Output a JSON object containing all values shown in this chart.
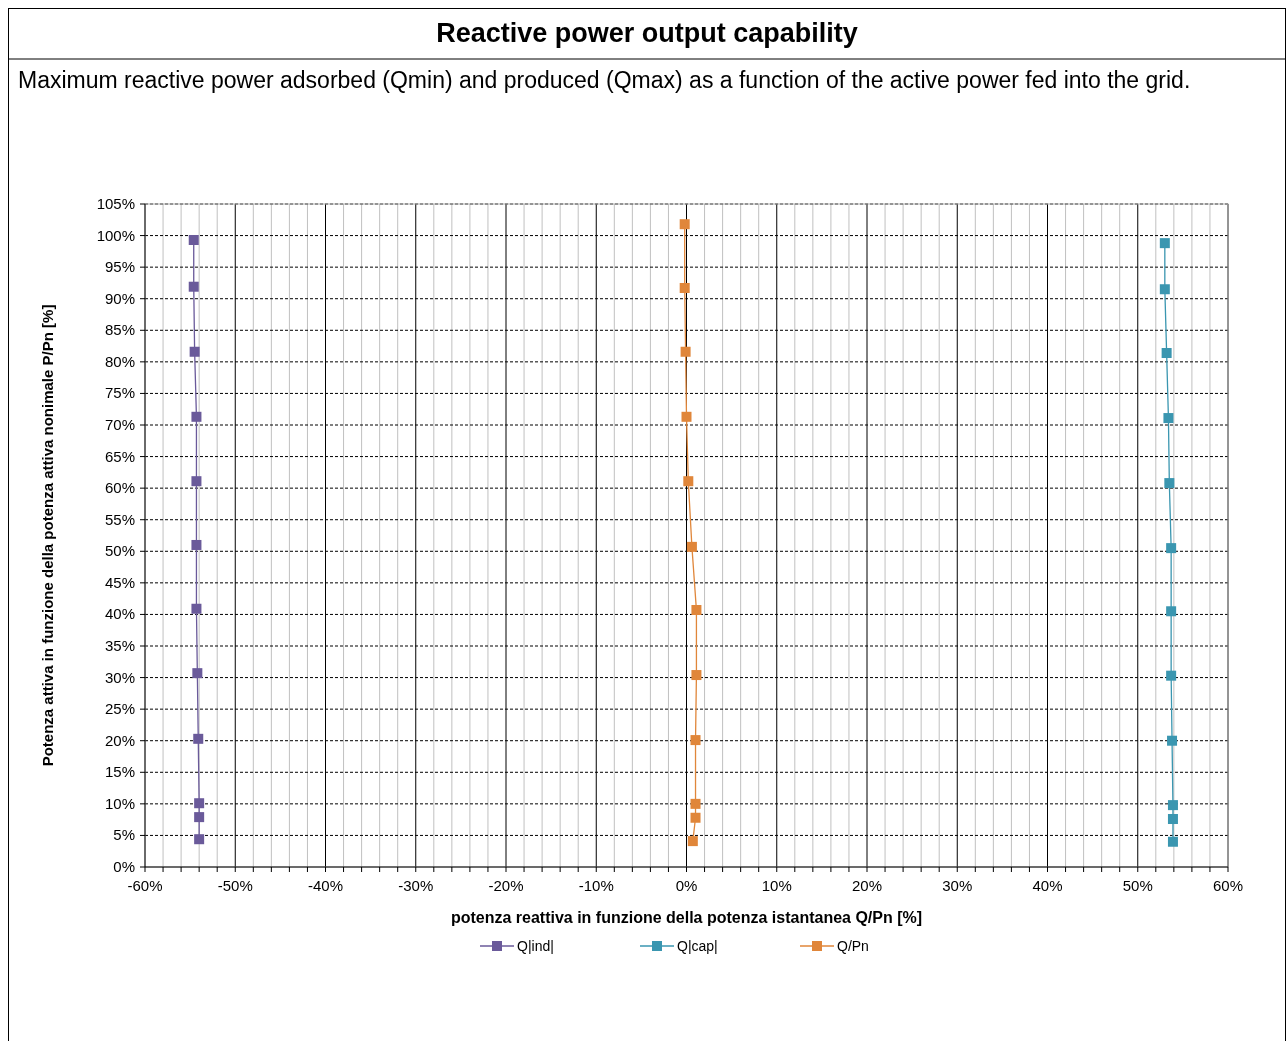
{
  "chart_data": {
    "type": "line",
    "title": "Reactive power output capability",
    "subtitle": "Maximum reactive power adsorbed (Qmin) and produced (Qmax) as a function of the active power fed into the grid.",
    "xlabel": "potenza reattiva in funzione della potenza istantanea Q/Pn [%]",
    "ylabel": "Potenza attiva in funzione della potenza attiva nonimale P/Pn  [%]",
    "xlim": [
      -60,
      60
    ],
    "ylim": [
      0,
      105
    ],
    "xticks": [
      {
        "value": -60,
        "label": "-60%"
      },
      {
        "value": -58,
        "label": null
      },
      {
        "value": -56,
        "label": null
      },
      {
        "value": -54,
        "label": null
      },
      {
        "value": -52,
        "label": null
      },
      {
        "value": -50,
        "label": "-50%"
      },
      {
        "value": -48,
        "label": null
      },
      {
        "value": -46,
        "label": null
      },
      {
        "value": -44,
        "label": null
      },
      {
        "value": -42,
        "label": null
      },
      {
        "value": -40,
        "label": "-40%"
      },
      {
        "value": -38,
        "label": null
      },
      {
        "value": -36,
        "label": null
      },
      {
        "value": -34,
        "label": null
      },
      {
        "value": -32,
        "label": null
      },
      {
        "value": -30,
        "label": "-30%"
      },
      {
        "value": -28,
        "label": null
      },
      {
        "value": -26,
        "label": null
      },
      {
        "value": -24,
        "label": null
      },
      {
        "value": -22,
        "label": null
      },
      {
        "value": -20,
        "label": "-20%"
      },
      {
        "value": -18,
        "label": null
      },
      {
        "value": -16,
        "label": null
      },
      {
        "value": -14,
        "label": null
      },
      {
        "value": -12,
        "label": null
      },
      {
        "value": -10,
        "label": "-10%"
      },
      {
        "value": -8,
        "label": null
      },
      {
        "value": -6,
        "label": null
      },
      {
        "value": -4,
        "label": null
      },
      {
        "value": -2,
        "label": null
      },
      {
        "value": 0,
        "label": "0%"
      },
      {
        "value": 2,
        "label": null
      },
      {
        "value": 4,
        "label": null
      },
      {
        "value": 6,
        "label": null
      },
      {
        "value": 8,
        "label": null
      },
      {
        "value": 10,
        "label": "10%"
      },
      {
        "value": 12,
        "label": null
      },
      {
        "value": 14,
        "label": null
      },
      {
        "value": 16,
        "label": null
      },
      {
        "value": 18,
        "label": null
      },
      {
        "value": 20,
        "label": "20%"
      },
      {
        "value": 22,
        "label": null
      },
      {
        "value": 24,
        "label": null
      },
      {
        "value": 26,
        "label": null
      },
      {
        "value": 28,
        "label": null
      },
      {
        "value": 30,
        "label": "30%"
      },
      {
        "value": 32,
        "label": null
      },
      {
        "value": 34,
        "label": null
      },
      {
        "value": 36,
        "label": null
      },
      {
        "value": 38,
        "label": null
      },
      {
        "value": 40,
        "label": "40%"
      },
      {
        "value": 42,
        "label": null
      },
      {
        "value": 44,
        "label": null
      },
      {
        "value": 46,
        "label": null
      },
      {
        "value": 48,
        "label": null
      },
      {
        "value": 50,
        "label": "50%"
      },
      {
        "value": 52,
        "label": null
      },
      {
        "value": 54,
        "label": null
      },
      {
        "value": 56,
        "label": null
      },
      {
        "value": 58,
        "label": null
      },
      {
        "value": 60,
        "label": "60%"
      }
    ],
    "yticks": [
      {
        "value": 0,
        "label": "0%"
      },
      {
        "value": 5,
        "label": "5%"
      },
      {
        "value": 10,
        "label": "10%"
      },
      {
        "value": 15,
        "label": "15%"
      },
      {
        "value": 20,
        "label": "20%"
      },
      {
        "value": 25,
        "label": "25%"
      },
      {
        "value": 30,
        "label": "30%"
      },
      {
        "value": 35,
        "label": "35%"
      },
      {
        "value": 40,
        "label": "40%"
      },
      {
        "value": 45,
        "label": "45%"
      },
      {
        "value": 50,
        "label": "50%"
      },
      {
        "value": 55,
        "label": "55%"
      },
      {
        "value": 60,
        "label": "60%"
      },
      {
        "value": 65,
        "label": "65%"
      },
      {
        "value": 70,
        "label": "70%"
      },
      {
        "value": 75,
        "label": "75%"
      },
      {
        "value": 80,
        "label": "80%"
      },
      {
        "value": 85,
        "label": "85%"
      },
      {
        "value": 90,
        "label": "90%"
      },
      {
        "value": 95,
        "label": "95%"
      },
      {
        "value": 100,
        "label": "100%"
      },
      {
        "value": 105,
        "label": "105%"
      }
    ],
    "grid": true,
    "legend": "bottom",
    "marker": "square",
    "line_style": "solid",
    "series": [
      {
        "name": "Q|ind|",
        "color": "#6a5a9a",
        "x": [
          -54.6,
          -54.6,
          -54.5,
          -54.3,
          -54.3,
          -54.3,
          -54.3,
          -54.2,
          -54.1,
          -54.0,
          -54.0,
          -54.0
        ],
        "values": [
          99.3,
          91.9,
          81.6,
          71.3,
          61.1,
          51.0,
          40.9,
          30.7,
          20.3,
          10.1,
          7.9,
          4.4
        ]
      },
      {
        "name": "Q|cap|",
        "color": "#3a96b0",
        "x": [
          53.0,
          53.0,
          53.2,
          53.4,
          53.5,
          53.7,
          53.7,
          53.7,
          53.8,
          53.9,
          53.9,
          53.9
        ],
        "values": [
          98.8,
          91.5,
          81.4,
          71.1,
          60.8,
          50.5,
          40.5,
          30.3,
          20.0,
          9.8,
          7.6,
          4.0
        ]
      },
      {
        "name": "Q/Pn",
        "color": "#e0863a",
        "x": [
          -0.2,
          -0.2,
          -0.1,
          0.0,
          0.2,
          0.6,
          1.1,
          1.1,
          1.0,
          1.0,
          1.0,
          0.7
        ],
        "values": [
          101.8,
          91.7,
          81.6,
          71.3,
          61.1,
          50.7,
          40.7,
          30.4,
          20.1,
          10.0,
          7.8,
          4.1
        ]
      }
    ]
  }
}
